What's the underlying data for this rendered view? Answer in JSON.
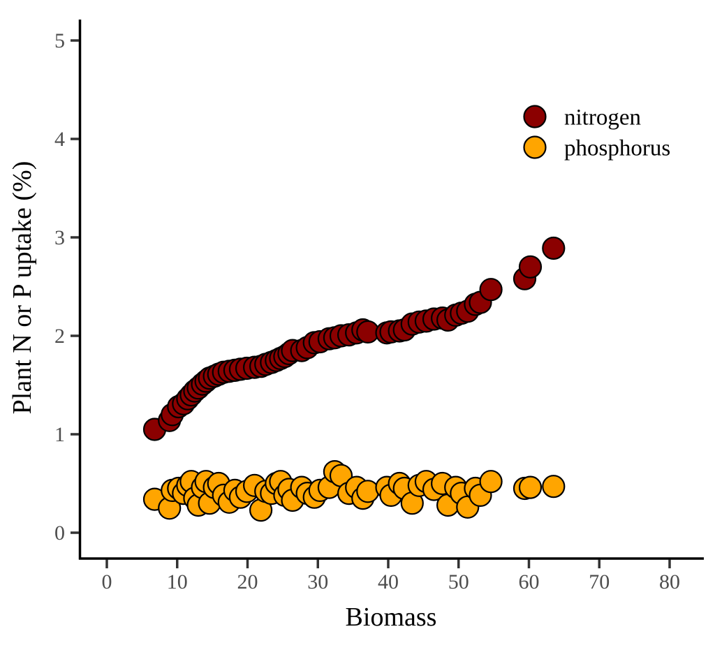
{
  "chart_data": {
    "type": "scatter",
    "title": "",
    "xlabel": "Biomass",
    "ylabel": "Plant N or P uptake (%)",
    "xlim": [
      -3.8,
      84.8
    ],
    "ylim": [
      -0.26,
      5.22
    ],
    "x_ticks": [
      0,
      10,
      20,
      30,
      40,
      50,
      60,
      70,
      80
    ],
    "y_ticks": [
      0,
      1,
      2,
      3,
      4,
      5
    ],
    "grid": false,
    "legend": {
      "position": "top-right-inside",
      "entries": [
        {
          "label": "nitrogen",
          "color": "#8B0000"
        },
        {
          "label": "phosphorus",
          "color": "#FFA500"
        }
      ]
    },
    "marker": {
      "radius_px": 15.5,
      "stroke": "#000000",
      "stroke_width": 2.2
    },
    "series": [
      {
        "name": "nitrogen",
        "color": "#8B0000",
        "points": [
          [
            6.8,
            1.05
          ],
          [
            8.9,
            1.14
          ],
          [
            9.3,
            1.2
          ],
          [
            10.2,
            1.28
          ],
          [
            10.9,
            1.31
          ],
          [
            11.5,
            1.36
          ],
          [
            12.0,
            1.4
          ],
          [
            12.5,
            1.44
          ],
          [
            13.0,
            1.47
          ],
          [
            13.6,
            1.51
          ],
          [
            14.1,
            1.54
          ],
          [
            14.6,
            1.57
          ],
          [
            15.3,
            1.59
          ],
          [
            15.9,
            1.61
          ],
          [
            16.6,
            1.63
          ],
          [
            17.4,
            1.64
          ],
          [
            18.2,
            1.65
          ],
          [
            19.0,
            1.66
          ],
          [
            19.9,
            1.67
          ],
          [
            21.0,
            1.68
          ],
          [
            21.9,
            1.69
          ],
          [
            22.6,
            1.71
          ],
          [
            23.4,
            1.73
          ],
          [
            24.1,
            1.75
          ],
          [
            24.7,
            1.77
          ],
          [
            25.3,
            1.79
          ],
          [
            25.9,
            1.82
          ],
          [
            26.4,
            1.85
          ],
          [
            27.7,
            1.85
          ],
          [
            28.5,
            1.88
          ],
          [
            29.5,
            1.93
          ],
          [
            30.3,
            1.94
          ],
          [
            31.6,
            1.97
          ],
          [
            32.4,
            1.98
          ],
          [
            33.3,
            2.0
          ],
          [
            34.4,
            2.01
          ],
          [
            35.5,
            2.03
          ],
          [
            36.4,
            2.06
          ],
          [
            37.1,
            2.04
          ],
          [
            39.8,
            2.03
          ],
          [
            40.4,
            2.04
          ],
          [
            41.6,
            2.05
          ],
          [
            42.3,
            2.06
          ],
          [
            43.4,
            2.12
          ],
          [
            44.4,
            2.14
          ],
          [
            45.4,
            2.15
          ],
          [
            46.5,
            2.17
          ],
          [
            47.7,
            2.18
          ],
          [
            48.5,
            2.16
          ],
          [
            49.6,
            2.21
          ],
          [
            50.4,
            2.23
          ],
          [
            51.3,
            2.25
          ],
          [
            52.4,
            2.32
          ],
          [
            53.1,
            2.34
          ],
          [
            54.6,
            2.47
          ],
          [
            59.4,
            2.58
          ],
          [
            60.2,
            2.7
          ],
          [
            63.5,
            2.89
          ]
        ]
      },
      {
        "name": "phosphorus",
        "color": "#FFA500",
        "points": [
          [
            6.8,
            0.34
          ],
          [
            8.9,
            0.25
          ],
          [
            9.3,
            0.43
          ],
          [
            10.2,
            0.45
          ],
          [
            10.9,
            0.4
          ],
          [
            11.5,
            0.48
          ],
          [
            12.0,
            0.52
          ],
          [
            12.5,
            0.35
          ],
          [
            13.0,
            0.28
          ],
          [
            13.6,
            0.46
          ],
          [
            14.1,
            0.52
          ],
          [
            14.6,
            0.3
          ],
          [
            15.3,
            0.46
          ],
          [
            15.9,
            0.5
          ],
          [
            16.6,
            0.38
          ],
          [
            17.4,
            0.31
          ],
          [
            18.2,
            0.43
          ],
          [
            19.0,
            0.36
          ],
          [
            19.9,
            0.42
          ],
          [
            21.0,
            0.48
          ],
          [
            21.9,
            0.23
          ],
          [
            22.6,
            0.42
          ],
          [
            23.4,
            0.4
          ],
          [
            24.1,
            0.5
          ],
          [
            24.7,
            0.52
          ],
          [
            25.3,
            0.38
          ],
          [
            25.9,
            0.44
          ],
          [
            26.4,
            0.33
          ],
          [
            27.7,
            0.46
          ],
          [
            28.5,
            0.4
          ],
          [
            29.5,
            0.36
          ],
          [
            30.3,
            0.43
          ],
          [
            31.6,
            0.46
          ],
          [
            32.4,
            0.62
          ],
          [
            33.3,
            0.58
          ],
          [
            34.4,
            0.4
          ],
          [
            35.5,
            0.46
          ],
          [
            36.4,
            0.35
          ],
          [
            37.1,
            0.42
          ],
          [
            39.8,
            0.46
          ],
          [
            40.4,
            0.38
          ],
          [
            41.6,
            0.5
          ],
          [
            42.3,
            0.45
          ],
          [
            43.4,
            0.3
          ],
          [
            44.4,
            0.48
          ],
          [
            45.4,
            0.52
          ],
          [
            46.5,
            0.44
          ],
          [
            47.7,
            0.5
          ],
          [
            48.5,
            0.28
          ],
          [
            49.6,
            0.46
          ],
          [
            50.4,
            0.4
          ],
          [
            51.3,
            0.26
          ],
          [
            52.4,
            0.45
          ],
          [
            53.1,
            0.38
          ],
          [
            54.6,
            0.52
          ],
          [
            59.4,
            0.45
          ],
          [
            60.2,
            0.46
          ],
          [
            63.5,
            0.47
          ]
        ]
      }
    ]
  },
  "styles": {
    "background": "#ffffff",
    "axis_line_color": "#000000",
    "tick_mark_color": "#333333",
    "tick_label_color": "#4d4d4d",
    "axis_title_color": "#000000"
  }
}
